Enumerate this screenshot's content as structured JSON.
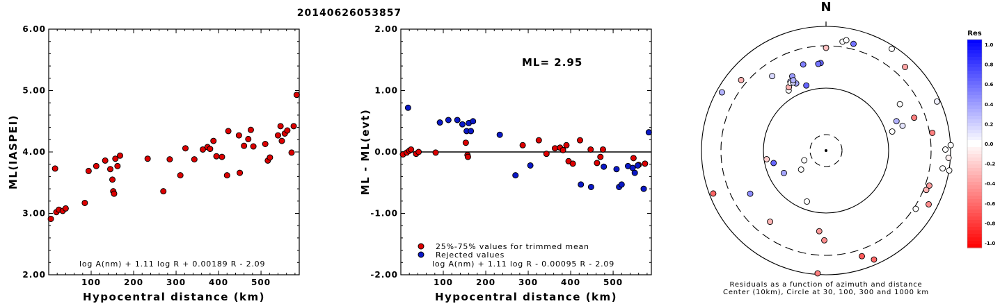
{
  "figure_title": "20140626053857",
  "colors": {
    "accepted": "#dd0000",
    "rejected": "#0a18c8",
    "axis": "#000000"
  },
  "chart_data": [
    {
      "id": "ml-vs-distance",
      "type": "scatter",
      "xlabel": "Hypocentral distance (km)",
      "ylabel": "ML(IASPEI)",
      "xlim": [
        0,
        590
      ],
      "ylim": [
        2.0,
        6.0
      ],
      "xticks": [
        100,
        200,
        300,
        400,
        500
      ],
      "yticks": [
        "2.00",
        "3.00",
        "4.00",
        "5.00",
        "6.00"
      ],
      "annotation": "log A(nm) + 1.11 log R + 0.00189 R - 2.09",
      "points": [
        [
          5,
          2.91
        ],
        [
          15,
          3.73
        ],
        [
          18,
          3.02
        ],
        [
          24,
          3.06
        ],
        [
          33,
          3.04
        ],
        [
          40,
          3.08
        ],
        [
          85,
          3.17
        ],
        [
          94,
          3.69
        ],
        [
          112,
          3.77
        ],
        [
          133,
          3.86
        ],
        [
          145,
          3.72
        ],
        [
          150,
          3.55
        ],
        [
          152,
          3.36
        ],
        [
          154,
          3.32
        ],
        [
          157,
          3.89
        ],
        [
          162,
          3.77
        ],
        [
          168,
          3.94
        ],
        [
          233,
          3.89
        ],
        [
          270,
          3.36
        ],
        [
          285,
          3.88
        ],
        [
          310,
          3.62
        ],
        [
          322,
          4.06
        ],
        [
          343,
          3.88
        ],
        [
          363,
          4.04
        ],
        [
          374,
          4.08
        ],
        [
          380,
          4.05
        ],
        [
          388,
          4.18
        ],
        [
          395,
          3.93
        ],
        [
          408,
          3.92
        ],
        [
          420,
          3.62
        ],
        [
          423,
          4.34
        ],
        [
          448,
          4.27
        ],
        [
          450,
          3.66
        ],
        [
          460,
          4.1
        ],
        [
          470,
          4.21
        ],
        [
          476,
          4.36
        ],
        [
          482,
          4.09
        ],
        [
          510,
          4.13
        ],
        [
          516,
          3.86
        ],
        [
          521,
          3.91
        ],
        [
          540,
          4.27
        ],
        [
          546,
          4.42
        ],
        [
          549,
          4.18
        ],
        [
          556,
          4.3
        ],
        [
          562,
          4.35
        ],
        [
          572,
          3.99
        ],
        [
          577,
          4.42
        ],
        [
          584,
          4.93
        ]
      ]
    },
    {
      "id": "residual-vs-distance",
      "type": "scatter",
      "xlabel": "Hypocentral distance (km)",
      "ylabel": "ML - ML(evt)",
      "xlim": [
        0,
        590
      ],
      "ylim": [
        -2.0,
        2.0
      ],
      "xticks": [
        100,
        200,
        300,
        400,
        500
      ],
      "yticks": [
        "-2.00",
        "-1.00",
        "0.00",
        "1.00",
        "2.00"
      ],
      "reference_line": 0,
      "summary": "ML= 2.95",
      "annotation": "log A(nm) + 1.11 log R - 0.00095 R - 2.09",
      "legend": [
        {
          "label": "25%-75% values for trimmed mean",
          "status": "accepted"
        },
        {
          "label": "Rejected values",
          "status": "rejected"
        }
      ],
      "series": [
        {
          "status": "accepted",
          "points": [
            [
              5,
              -0.04
            ],
            [
              14,
              -0.01
            ],
            [
              20,
              0.02
            ],
            [
              24,
              0.04
            ],
            [
              36,
              -0.03
            ],
            [
              42,
              0.0
            ],
            [
              82,
              -0.01
            ],
            [
              153,
              0.15
            ],
            [
              157,
              -0.05
            ],
            [
              158,
              -0.08
            ],
            [
              287,
              0.11
            ],
            [
              325,
              0.19
            ],
            [
              343,
              -0.03
            ],
            [
              363,
              0.06
            ],
            [
              375,
              0.07
            ],
            [
              382,
              0.03
            ],
            [
              390,
              0.11
            ],
            [
              395,
              -0.15
            ],
            [
              405,
              -0.19
            ],
            [
              422,
              0.19
            ],
            [
              447,
              0.04
            ],
            [
              462,
              -0.18
            ],
            [
              470,
              -0.08
            ],
            [
              476,
              0.04
            ],
            [
              548,
              -0.1
            ],
            [
              560,
              -0.21
            ],
            [
              575,
              -0.19
            ]
          ]
        },
        {
          "status": "rejected",
          "points": [
            [
              17,
              0.72
            ],
            [
              92,
              0.48
            ],
            [
              112,
              0.52
            ],
            [
              133,
              0.52
            ],
            [
              145,
              0.45
            ],
            [
              155,
              0.34
            ],
            [
              160,
              0.47
            ],
            [
              165,
              0.34
            ],
            [
              170,
              0.5
            ],
            [
              233,
              0.28
            ],
            [
              270,
              -0.38
            ],
            [
              305,
              -0.22
            ],
            [
              424,
              -0.53
            ],
            [
              448,
              -0.57
            ],
            [
              478,
              -0.24
            ],
            [
              508,
              -0.28
            ],
            [
              514,
              -0.57
            ],
            [
              520,
              -0.53
            ],
            [
              535,
              -0.23
            ],
            [
              546,
              -0.26
            ],
            [
              551,
              -0.34
            ],
            [
              558,
              -0.22
            ],
            [
              572,
              -0.6
            ],
            [
              584,
              0.32
            ]
          ]
        }
      ]
    },
    {
      "id": "azimuth-residual-map",
      "type": "scatter",
      "north_label": "N",
      "caption_lines": [
        "Residuals as a function of azimuth and distance",
        "Center (10km), Circle at 30, 100, 300 and 1000 km"
      ],
      "colorbar": {
        "title": "Res",
        "range": [
          -1.0,
          1.0
        ],
        "ticks": [
          "1.0",
          "0.8",
          "0.6",
          "0.4",
          "0.2",
          "0.0",
          "-0.2",
          "-0.4",
          "-0.6",
          "-0.8",
          "-1.0"
        ]
      },
      "stations": [
        {
          "azimuth_deg": 0,
          "residual": -0.25
        },
        {
          "azimuth_deg": 8.6,
          "residual": 0.0
        },
        {
          "azimuth_deg": 10.4,
          "residual": 0.0
        },
        {
          "azimuth_deg": 14.4,
          "residual": 0.55
        },
        {
          "azimuth_deg": 32.8,
          "residual": 0.0
        },
        {
          "azimuth_deg": 43.3,
          "residual": -0.35
        },
        {
          "azimuth_deg": 57.8,
          "residual": 0.0
        },
        {
          "azimuth_deg": 66.1,
          "residual": 0.05
        },
        {
          "azimuth_deg": 67.3,
          "residual": 0.3
        },
        {
          "azimuth_deg": 72.0,
          "residual": 0.1
        },
        {
          "azimuth_deg": 73.9,
          "residual": 0.0
        },
        {
          "azimuth_deg": 69.5,
          "residual": -0.5
        },
        {
          "azimuth_deg": 80.5,
          "residual": -0.5
        },
        {
          "azimuth_deg": 87.5,
          "residual": 0.0
        },
        {
          "azimuth_deg": 89.5,
          "residual": 0.0
        },
        {
          "azimuth_deg": 93.4,
          "residual": -0.05
        },
        {
          "azimuth_deg": 98.7,
          "residual": 0.0
        },
        {
          "azimuth_deg": 99.2,
          "residual": 0.0
        },
        {
          "azimuth_deg": 108.8,
          "residual": -0.4
        },
        {
          "azimuth_deg": 111.5,
          "residual": -0.3
        },
        {
          "azimuth_deg": 117.7,
          "residual": -0.45
        },
        {
          "azimuth_deg": 123.1,
          "residual": 0.0
        },
        {
          "azimuth_deg": 156.3,
          "residual": -0.6
        },
        {
          "azimuth_deg": 161.3,
          "residual": -0.65
        },
        {
          "azimuth_deg": 183.9,
          "residual": -0.5
        },
        {
          "azimuth_deg": 184.8,
          "residual": -0.4
        },
        {
          "azimuth_deg": 181.1,
          "residual": -0.45
        },
        {
          "azimuth_deg": 218.1,
          "residual": -0.3
        },
        {
          "azimuth_deg": 240.3,
          "residual": 0.45
        },
        {
          "azimuth_deg": 241.9,
          "residual": 0.35
        },
        {
          "azimuth_deg": 249.1,
          "residual": -0.6
        },
        {
          "azimuth_deg": 261.7,
          "residual": -0.2
        },
        {
          "azimuth_deg": 299.3,
          "residual": 0.3
        },
        {
          "azimuth_deg": 309.8,
          "residual": -0.3
        },
        {
          "azimuth_deg": 324.2,
          "residual": 0.15
        },
        {
          "azimuth_deg": 328.2,
          "residual": 0.0
        },
        {
          "azimuth_deg": 329.7,
          "residual": -0.3
        },
        {
          "azimuth_deg": 332.7,
          "residual": 0.2
        },
        {
          "azimuth_deg": 333.9,
          "residual": 0.35
        },
        {
          "azimuth_deg": 335.6,
          "residual": 0.4
        },
        {
          "azimuth_deg": 336.1,
          "residual": 0.35
        },
        {
          "azimuth_deg": 345.2,
          "residual": 0.5
        },
        {
          "azimuth_deg": 356.5,
          "residual": 0.6
        },
        {
          "azimuth_deg": 354.9,
          "residual": 0.55
        },
        {
          "azimuth_deg": 332.4,
          "residual": 0.0
        },
        {
          "azimuth_deg": 334.3,
          "residual": 0.15
        },
        {
          "azimuth_deg": 335.1,
          "residual": 0.3
        },
        {
          "azimuth_deg": 343.2,
          "residual": 0.6
        },
        {
          "azimuth_deg": 256.6,
          "residual": 0.6
        },
        {
          "azimuth_deg": 245.8,
          "residual": 0.0
        },
        {
          "azimuth_deg": 200.5,
          "residual": 0.0
        },
        {
          "azimuth_deg": 232.6,
          "residual": 0.0
        }
      ]
    }
  ]
}
